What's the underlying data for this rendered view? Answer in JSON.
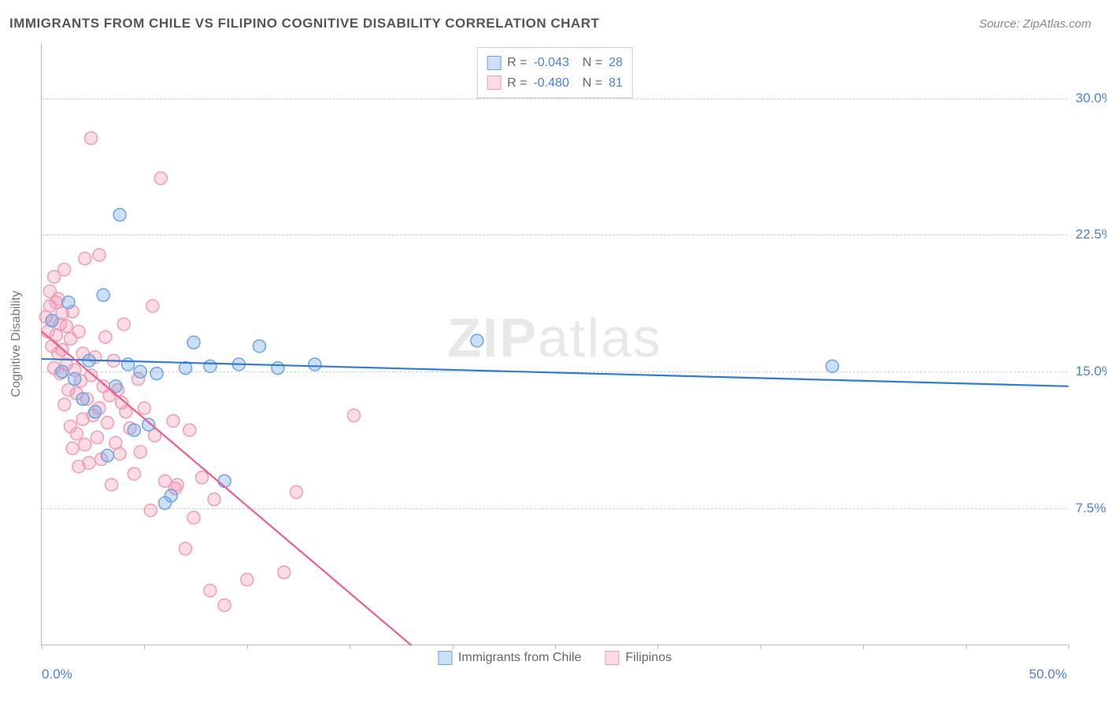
{
  "title": "IMMIGRANTS FROM CHILE VS FILIPINO COGNITIVE DISABILITY CORRELATION CHART",
  "source": "Source: ZipAtlas.com",
  "watermark_bold": "ZIP",
  "watermark_light": "atlas",
  "chart": {
    "type": "scatter",
    "background_color": "#ffffff",
    "grid_color": "#d0d0d0",
    "axis_color": "#bbbbbb",
    "tick_label_color": "#4a7fd6",
    "axis_label_color": "#777777",
    "xlim": [
      0,
      50
    ],
    "ylim": [
      0,
      33
    ],
    "x_ticks": [
      0,
      5,
      10,
      15,
      20,
      25,
      30,
      35,
      40,
      45,
      50
    ],
    "y_gridlines": [
      7.5,
      15.0,
      22.5,
      30.0
    ],
    "y_tick_labels": [
      "7.5%",
      "15.0%",
      "22.5%",
      "30.0%"
    ],
    "x_tick_labels": {
      "0": "0.0%",
      "50": "50.0%"
    },
    "y_axis_label": "Cognitive Disability",
    "marker_radius": 8,
    "marker_fill_opacity": 0.35,
    "marker_stroke_width": 1.5,
    "line_width": 2.2,
    "label_fontsize": 17,
    "axis_label_fontsize": 16,
    "series": [
      {
        "name": "Immigrants from Chile",
        "color": "#6aa3e8",
        "line_color": "#2f7bd9",
        "R": "-0.043",
        "N": "28",
        "trend": {
          "x1": 0,
          "y1": 15.7,
          "x2": 50,
          "y2": 14.2
        },
        "points": [
          [
            0.5,
            17.8
          ],
          [
            1.0,
            15.0
          ],
          [
            1.3,
            18.8
          ],
          [
            1.6,
            14.6
          ],
          [
            2.0,
            13.5
          ],
          [
            2.3,
            15.6
          ],
          [
            2.6,
            12.8
          ],
          [
            3.0,
            19.2
          ],
          [
            3.2,
            10.4
          ],
          [
            3.8,
            23.6
          ],
          [
            3.6,
            14.2
          ],
          [
            4.2,
            15.4
          ],
          [
            4.5,
            11.8
          ],
          [
            4.8,
            15.0
          ],
          [
            5.2,
            12.1
          ],
          [
            5.6,
            14.9
          ],
          [
            6.0,
            7.8
          ],
          [
            6.3,
            8.2
          ],
          [
            7.0,
            15.2
          ],
          [
            7.4,
            16.6
          ],
          [
            8.2,
            15.3
          ],
          [
            8.9,
            9.0
          ],
          [
            9.6,
            15.4
          ],
          [
            10.6,
            16.4
          ],
          [
            11.5,
            15.2
          ],
          [
            13.3,
            15.4
          ],
          [
            21.2,
            16.7
          ],
          [
            38.5,
            15.3
          ]
        ]
      },
      {
        "name": "Filipinos",
        "color": "#f29bb3",
        "line_color": "#ee5d8a",
        "R": "-0.480",
        "N": "81",
        "trend": {
          "x1": 0,
          "y1": 17.2,
          "x2": 18,
          "y2": 0
        },
        "points": [
          [
            0.2,
            18.0
          ],
          [
            0.3,
            17.2
          ],
          [
            0.4,
            18.6
          ],
          [
            0.4,
            19.4
          ],
          [
            0.5,
            17.8
          ],
          [
            0.5,
            16.4
          ],
          [
            0.6,
            20.2
          ],
          [
            0.6,
            15.2
          ],
          [
            0.7,
            17.0
          ],
          [
            0.7,
            18.8
          ],
          [
            0.8,
            16.0
          ],
          [
            0.8,
            19.0
          ],
          [
            0.9,
            17.6
          ],
          [
            0.9,
            14.9
          ],
          [
            1.0,
            16.2
          ],
          [
            1.0,
            18.2
          ],
          [
            1.1,
            13.2
          ],
          [
            1.1,
            20.6
          ],
          [
            1.2,
            15.4
          ],
          [
            1.2,
            17.5
          ],
          [
            1.3,
            14.0
          ],
          [
            1.4,
            16.8
          ],
          [
            1.4,
            12.0
          ],
          [
            1.5,
            18.3
          ],
          [
            1.5,
            10.8
          ],
          [
            1.6,
            15.1
          ],
          [
            1.7,
            11.6
          ],
          [
            1.7,
            13.8
          ],
          [
            1.8,
            17.2
          ],
          [
            1.8,
            9.8
          ],
          [
            1.9,
            14.5
          ],
          [
            2.0,
            12.4
          ],
          [
            2.0,
            16.0
          ],
          [
            2.1,
            21.2
          ],
          [
            2.1,
            11.0
          ],
          [
            2.2,
            13.5
          ],
          [
            2.3,
            10.0
          ],
          [
            2.4,
            14.8
          ],
          [
            2.4,
            27.8
          ],
          [
            2.5,
            12.6
          ],
          [
            2.6,
            15.8
          ],
          [
            2.7,
            11.4
          ],
          [
            2.8,
            21.4
          ],
          [
            2.8,
            13.0
          ],
          [
            2.9,
            10.2
          ],
          [
            3.0,
            14.2
          ],
          [
            3.1,
            16.9
          ],
          [
            3.2,
            12.2
          ],
          [
            3.3,
            13.7
          ],
          [
            3.4,
            8.8
          ],
          [
            3.5,
            15.6
          ],
          [
            3.6,
            11.1
          ],
          [
            3.7,
            14.0
          ],
          [
            3.8,
            10.5
          ],
          [
            3.9,
            13.3
          ],
          [
            4.0,
            17.6
          ],
          [
            4.1,
            12.8
          ],
          [
            4.3,
            11.9
          ],
          [
            4.5,
            9.4
          ],
          [
            4.7,
            14.6
          ],
          [
            4.8,
            10.6
          ],
          [
            5.0,
            13.0
          ],
          [
            5.3,
            7.4
          ],
          [
            5.4,
            18.6
          ],
          [
            5.5,
            11.5
          ],
          [
            5.8,
            25.6
          ],
          [
            6.0,
            9.0
          ],
          [
            6.4,
            12.3
          ],
          [
            6.5,
            8.6
          ],
          [
            6.6,
            8.8
          ],
          [
            7.0,
            5.3
          ],
          [
            7.2,
            11.8
          ],
          [
            7.4,
            7.0
          ],
          [
            7.8,
            9.2
          ],
          [
            8.2,
            3.0
          ],
          [
            8.4,
            8.0
          ],
          [
            8.9,
            2.2
          ],
          [
            10.0,
            3.6
          ],
          [
            11.8,
            4.0
          ],
          [
            12.4,
            8.4
          ],
          [
            15.2,
            12.6
          ]
        ]
      }
    ],
    "legend_bottom": [
      {
        "label": "Immigrants from Chile",
        "color": "#6aa3e8"
      },
      {
        "label": "Filipinos",
        "color": "#f29bb3"
      }
    ]
  }
}
